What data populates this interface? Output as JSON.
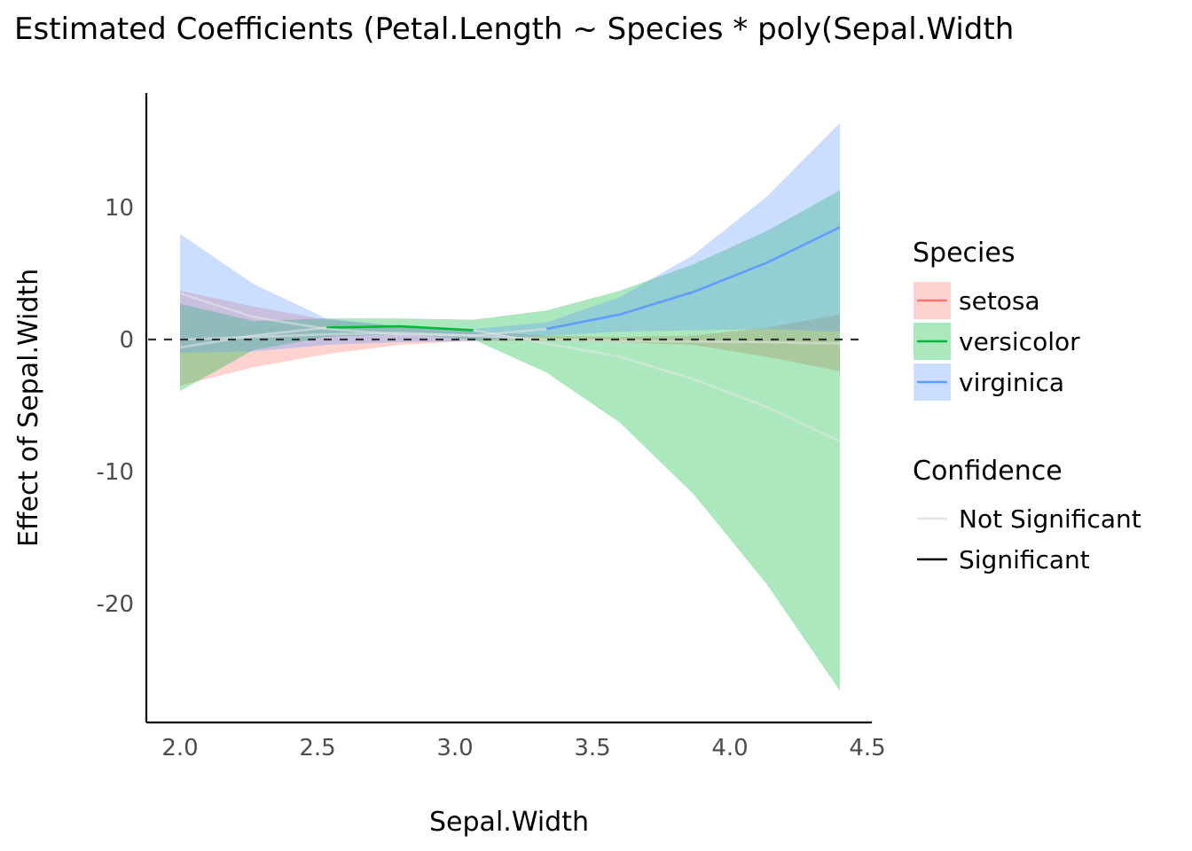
{
  "chart_data": {
    "type": "line",
    "title": "Estimated Coefficients (Petal.Length ~ Species * poly(Sepal.Width",
    "xlabel": "Sepal.Width",
    "ylabel": "Effect of Sepal.Width",
    "xlim": [
      1.88,
      4.5
    ],
    "ylim": [
      -28.5,
      18.5
    ],
    "x_ticks": [
      2.0,
      2.5,
      3.0,
      3.5,
      4.0,
      4.5
    ],
    "x_tick_labels": [
      "2.0",
      "2.5",
      "3.0",
      "3.5",
      "4.0",
      "4.5"
    ],
    "y_ticks": [
      10,
      0,
      -10,
      -20
    ],
    "y_tick_labels": [
      "10",
      "0",
      "-10",
      "-20"
    ],
    "grid": false,
    "reference_line": {
      "y": 0,
      "style": "dashed"
    },
    "x": [
      2.0,
      2.267,
      2.533,
      2.8,
      3.067,
      3.333,
      3.6,
      3.867,
      4.133,
      4.4
    ],
    "series": [
      {
        "name": "setosa",
        "color": "#F8766D",
        "values": [
          0.0,
          0.2,
          0.4,
          0.5,
          0.3,
          0.0,
          -0.1,
          -0.15,
          -0.2,
          -0.3
        ],
        "lower": [
          -3.5,
          -2.1,
          -1.1,
          -0.4,
          -0.1,
          -0.1,
          -0.2,
          -0.4,
          -1.3,
          -2.4
        ],
        "upper": [
          3.7,
          2.5,
          1.5,
          1.0,
          0.6,
          0.3,
          0.2,
          0.3,
          0.9,
          1.9
        ],
        "significant": [
          false,
          false,
          false,
          false,
          false,
          false,
          false,
          false,
          false,
          false
        ]
      },
      {
        "name": "versicolor",
        "color": "#00BA38",
        "values": [
          -0.6,
          0.3,
          0.9,
          1.0,
          0.7,
          -0.3,
          -1.3,
          -3.0,
          -5.1,
          -7.7
        ],
        "lower": [
          -3.9,
          -0.8,
          0.2,
          0.4,
          0.0,
          -2.5,
          -6.3,
          -11.7,
          -18.5,
          -26.6
        ],
        "upper": [
          2.7,
          1.4,
          1.6,
          1.6,
          1.5,
          2.2,
          3.7,
          5.7,
          8.2,
          11.3
        ],
        "significant": [
          false,
          false,
          true,
          true,
          true,
          false,
          false,
          false,
          false,
          false
        ]
      },
      {
        "name": "virginica",
        "color": "#619CFF",
        "values": [
          3.5,
          1.7,
          0.8,
          0.4,
          0.3,
          0.8,
          1.9,
          3.6,
          5.8,
          8.5
        ],
        "lower": [
          -1.0,
          -0.9,
          -0.4,
          -0.2,
          -0.1,
          0.3,
          0.6,
          0.7,
          0.8,
          0.6
        ],
        "upper": [
          8.0,
          4.2,
          1.6,
          1.0,
          0.8,
          1.3,
          3.2,
          6.4,
          10.8,
          16.4
        ],
        "significant": [
          false,
          false,
          false,
          false,
          false,
          true,
          true,
          true,
          true,
          true
        ]
      }
    ],
    "legend": {
      "placement": "right",
      "species_title": "Species",
      "species": [
        "setosa",
        "versicolor",
        "virginica"
      ],
      "confidence_title": "Confidence",
      "confidence": [
        "Not Significant",
        "Significant"
      ],
      "confidence_colors": [
        "#E5E5E5",
        "#000000"
      ]
    }
  }
}
